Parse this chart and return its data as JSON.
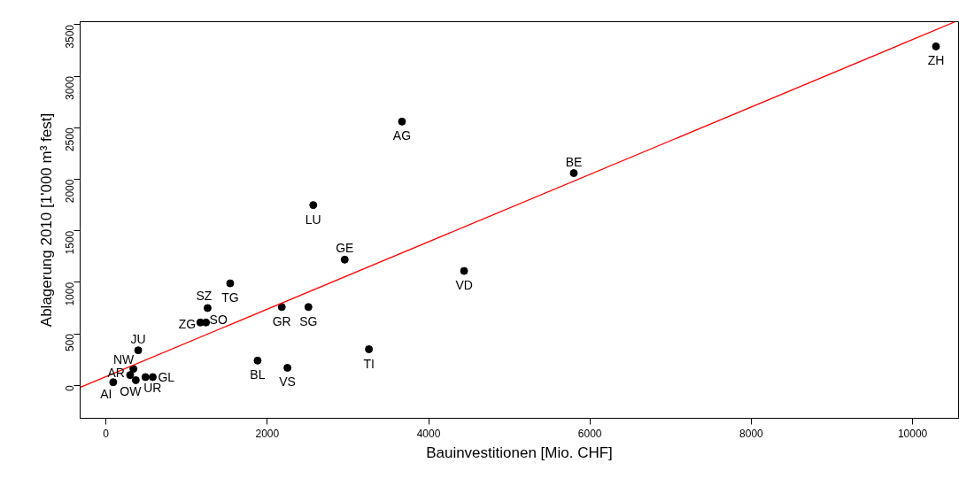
{
  "chart_data": {
    "type": "scatter",
    "xlabel": "Bauinvestitionen [Mio. CHF]",
    "ylabel": "Ablagerung 2010 [1'000 m³ fest]",
    "xlim": [
      -320,
      10570
    ],
    "ylim": [
      -320,
      3530
    ],
    "xticks": [
      0,
      2000,
      4000,
      6000,
      8000,
      10000
    ],
    "yticks": [
      0,
      500,
      1000,
      1500,
      2000,
      2500,
      3000,
      3500
    ],
    "grid": false,
    "series": [
      {
        "color": "#000000",
        "marker": "circle",
        "x": [
          10290,
          3670,
          5800,
          2570,
          2960,
          4440,
          1540,
          1260,
          2180,
          2510,
          1170,
          1240,
          3260,
          1880,
          2250,
          400,
          340,
          300,
          370,
          90,
          490,
          580
        ],
        "values": [
          3290,
          2560,
          2060,
          1750,
          1220,
          1110,
          990,
          750,
          760,
          760,
          610,
          610,
          350,
          240,
          170,
          340,
          160,
          100,
          50,
          30,
          80,
          80
        ],
        "value_labels": [
          "ZH",
          "AG",
          "BE",
          "LU",
          "GE",
          "VD",
          "TG",
          "SZ",
          "GR",
          "SG",
          "ZG",
          "SO",
          "TI",
          "BL",
          "VS",
          "JU",
          "NW",
          "AR",
          "OW",
          "AI",
          "UR",
          "GL"
        ]
      },
      {
        "type": "line",
        "color": "#ff0000",
        "x": [
          -320,
          10530
        ],
        "values": [
          -20,
          3530
        ]
      }
    ]
  }
}
